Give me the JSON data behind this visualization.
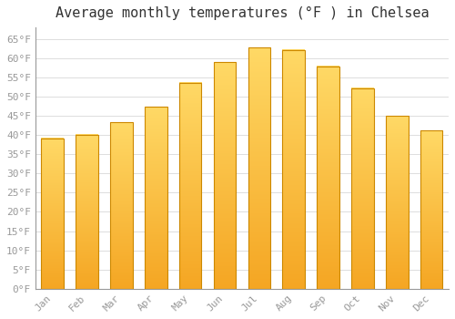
{
  "title": "Average monthly temperatures (°F ) in Chelsea",
  "months": [
    "Jan",
    "Feb",
    "Mar",
    "Apr",
    "May",
    "Jun",
    "Jul",
    "Aug",
    "Sep",
    "Oct",
    "Nov",
    "Dec"
  ],
  "values": [
    39.2,
    40.1,
    43.3,
    47.3,
    53.6,
    59.0,
    62.8,
    62.2,
    57.9,
    52.2,
    45.0,
    41.2
  ],
  "bar_color_top": "#FFD966",
  "bar_color_bottom": "#F5A623",
  "bar_edge_color": "#CC8800",
  "background_color": "#ffffff",
  "grid_color": "#dddddd",
  "ylim": [
    0,
    68
  ],
  "yticks": [
    0,
    5,
    10,
    15,
    20,
    25,
    30,
    35,
    40,
    45,
    50,
    55,
    60,
    65
  ],
  "title_fontsize": 11,
  "tick_fontsize": 8,
  "font_family": "monospace"
}
